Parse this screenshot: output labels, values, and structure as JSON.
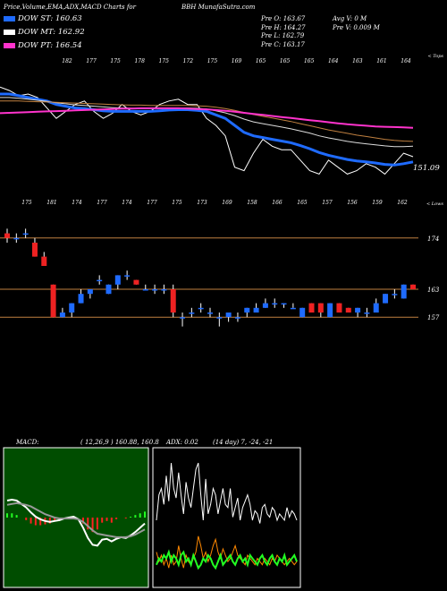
{
  "header": {
    "title": "Price,Volume,EMA,ADX,MACD Charts for",
    "symbol": "BBH",
    "site": "MunafaSutra.com"
  },
  "legend": [
    {
      "label": "DOW ST: 160.63",
      "color": "#1f6bff"
    },
    {
      "label": "DOW MT: 162.92",
      "color": "#ffffff"
    },
    {
      "label": "DOW PT: 166.54",
      "color": "#ff33cc"
    }
  ],
  "ohlc": {
    "open": "Pre O: 163.67",
    "high": "Pre H: 164.27",
    "low": "Pre L: 162.79",
    "close": "Pre C: 163.17",
    "avg_vol": "Avg V: 0 M",
    "pre_vol": "Pre V: 0.009 M"
  },
  "chart_data": [
    {
      "type": "line",
      "name": "ema-panel",
      "corner_label": "< Tops",
      "top_labels": [
        "182",
        "177",
        "175",
        "178",
        "175",
        "172",
        "175",
        "169",
        "165",
        "165",
        "165",
        "164",
        "163",
        "161",
        "164"
      ],
      "bottom_labels": [
        "175",
        "181",
        "174",
        "177",
        "174",
        "177",
        "175",
        "173",
        "169",
        "158",
        "166",
        "165",
        "157",
        "156",
        "159",
        "162"
      ],
      "price_label": "151.09",
      "series": [
        {
          "key": "price",
          "color": "#ffffff",
          "values": [
            177,
            176,
            174.5,
            175,
            174,
            171,
            168,
            170,
            172,
            173,
            170,
            168,
            169.5,
            172,
            170,
            169,
            170,
            172,
            173,
            173.5,
            172,
            172,
            168,
            166,
            163,
            154,
            153,
            158,
            162,
            160,
            159,
            159,
            156,
            153,
            152,
            156,
            154,
            152,
            153,
            155,
            154,
            152,
            155,
            158,
            157
          ]
        },
        {
          "key": "ema_blue",
          "color": "#1f6bff",
          "values": [
            175,
            175,
            174.5,
            174,
            173.5,
            173,
            172,
            171.5,
            171,
            170.8,
            170.5,
            170.2,
            170,
            170,
            170,
            170,
            170,
            170.2,
            170.4,
            170.5,
            170.5,
            170.3,
            170,
            169,
            168,
            166,
            164,
            163,
            162.5,
            162,
            161.5,
            161,
            160.2,
            159.3,
            158.2,
            157.4,
            156.8,
            156.2,
            155.8,
            155.5,
            155.2,
            154.8,
            154.6,
            155,
            155.5
          ]
        },
        {
          "key": "ema_white",
          "color": "#dddddd",
          "values": [
            174,
            174,
            173.8,
            173.5,
            173.2,
            172.9,
            172.5,
            172.2,
            171.9,
            171.7,
            171.5,
            171.3,
            171.1,
            171,
            170.9,
            170.8,
            170.8,
            170.8,
            170.9,
            171,
            171,
            170.9,
            170.7,
            170.2,
            169.6,
            168.8,
            167.8,
            167,
            166.5,
            166,
            165.5,
            165,
            164.4,
            163.8,
            163,
            162.4,
            161.9,
            161.4,
            161,
            160.7,
            160.4,
            160.1,
            159.9,
            159.9,
            160
          ]
        },
        {
          "key": "ema_orange",
          "color": "#c08040",
          "values": [
            173,
            173,
            173,
            172.9,
            172.8,
            172.7,
            172.6,
            172.5,
            172.4,
            172.3,
            172.2,
            172.1,
            172,
            171.9,
            171.8,
            171.8,
            171.7,
            171.7,
            171.7,
            171.7,
            171.7,
            171.6,
            171.5,
            171.2,
            170.8,
            170.3,
            169.7,
            169.1,
            168.6,
            168.1,
            167.6,
            167.1,
            166.5,
            165.9,
            165.3,
            164.7,
            164.2,
            163.7,
            163.2,
            162.8,
            162.4,
            162,
            161.7,
            161.5,
            161.4
          ]
        },
        {
          "key": "ema_pink",
          "color": "#ff33cc",
          "values": [
            169.5,
            169.6,
            169.7,
            169.8,
            169.9,
            170,
            170.1,
            170.2,
            170.3,
            170.4,
            170.5,
            170.6,
            170.7,
            170.8,
            170.8,
            170.9,
            170.9,
            170.9,
            170.9,
            170.9,
            170.8,
            170.7,
            170.6,
            170.4,
            170.2,
            169.9,
            169.6,
            169.3,
            169,
            168.7,
            168.4,
            168.1,
            167.8,
            167.5,
            167.2,
            166.9,
            166.6,
            166.3,
            166.1,
            165.9,
            165.7,
            165.6,
            165.5,
            165.4,
            165.3
          ]
        }
      ],
      "ylim": [
        148,
        184
      ]
    },
    {
      "type": "candlestick",
      "name": "price-panel",
      "corner_label": "< Lows",
      "x_labels": [
        "175",
        "181",
        "174",
        "177",
        "174",
        "177",
        "175",
        "173",
        "169",
        "158",
        "166",
        "165",
        "157",
        "156",
        "159",
        "162"
      ],
      "levels": [
        {
          "value": 174,
          "label": "174"
        },
        {
          "value": 163,
          "label": "163"
        },
        {
          "value": 157,
          "label": "157"
        }
      ],
      "candles": [
        {
          "o": 175,
          "h": 176,
          "l": 173,
          "c": 174
        },
        {
          "o": 174,
          "h": 175,
          "l": 173,
          "c": 174
        },
        {
          "o": 175,
          "h": 176,
          "l": 174,
          "c": 175
        },
        {
          "o": 173,
          "h": 174,
          "l": 170,
          "c": 170
        },
        {
          "o": 170,
          "h": 171,
          "l": 168,
          "c": 168
        },
        {
          "o": 164,
          "h": 164,
          "l": 157,
          "c": 157
        },
        {
          "o": 157,
          "h": 159,
          "l": 157,
          "c": 158
        },
        {
          "o": 158,
          "h": 160,
          "l": 157,
          "c": 160
        },
        {
          "o": 160,
          "h": 163,
          "l": 160,
          "c": 162
        },
        {
          "o": 162,
          "h": 163,
          "l": 161,
          "c": 163
        },
        {
          "o": 165,
          "h": 166,
          "l": 164,
          "c": 165
        },
        {
          "o": 162,
          "h": 164,
          "l": 162,
          "c": 164
        },
        {
          "o": 164,
          "h": 166,
          "l": 163,
          "c": 166
        },
        {
          "o": 166,
          "h": 167,
          "l": 165,
          "c": 166
        },
        {
          "o": 165,
          "h": 165,
          "l": 164,
          "c": 164
        },
        {
          "o": 163,
          "h": 164,
          "l": 163,
          "c": 163
        },
        {
          "o": 163,
          "h": 164,
          "l": 162,
          "c": 163
        },
        {
          "o": 163,
          "h": 164,
          "l": 162,
          "c": 163
        },
        {
          "o": 163,
          "h": 164,
          "l": 157,
          "c": 158
        },
        {
          "o": 157,
          "h": 158,
          "l": 155,
          "c": 157
        },
        {
          "o": 158,
          "h": 159,
          "l": 157,
          "c": 158
        },
        {
          "o": 159,
          "h": 160,
          "l": 158,
          "c": 159
        },
        {
          "o": 158,
          "h": 159,
          "l": 157,
          "c": 158
        },
        {
          "o": 157,
          "h": 158,
          "l": 155,
          "c": 157
        },
        {
          "o": 157,
          "h": 158,
          "l": 156,
          "c": 158
        },
        {
          "o": 157,
          "h": 158,
          "l": 156,
          "c": 157
        },
        {
          "o": 158,
          "h": 159,
          "l": 157,
          "c": 159
        },
        {
          "o": 158,
          "h": 160,
          "l": 158,
          "c": 159
        },
        {
          "o": 159,
          "h": 161,
          "l": 159,
          "c": 160
        },
        {
          "o": 160,
          "h": 161,
          "l": 159,
          "c": 160
        },
        {
          "o": 160,
          "h": 160,
          "l": 159,
          "c": 160
        },
        {
          "o": 159,
          "h": 160,
          "l": 159,
          "c": 159
        },
        {
          "o": 157,
          "h": 159,
          "l": 157,
          "c": 159
        },
        {
          "o": 160,
          "h": 160,
          "l": 158,
          "c": 158
        },
        {
          "o": 160,
          "h": 160,
          "l": 157,
          "c": 158
        },
        {
          "o": 157,
          "h": 160,
          "l": 157,
          "c": 160
        },
        {
          "o": 160,
          "h": 160,
          "l": 158,
          "c": 158
        },
        {
          "o": 159,
          "h": 159,
          "l": 158,
          "c": 158
        },
        {
          "o": 158,
          "h": 159,
          "l": 157,
          "c": 159
        },
        {
          "o": 158,
          "h": 159,
          "l": 157,
          "c": 158
        },
        {
          "o": 158,
          "h": 161,
          "l": 158,
          "c": 160
        },
        {
          "o": 160,
          "h": 162,
          "l": 160,
          "c": 162
        },
        {
          "o": 162,
          "h": 163,
          "l": 161,
          "c": 162
        },
        {
          "o": 161,
          "h": 164,
          "l": 161,
          "c": 164
        },
        {
          "o": 164,
          "h": 164,
          "l": 163,
          "c": 163
        }
      ],
      "ylim": [
        153,
        178
      ]
    },
    {
      "type": "line",
      "name": "macd-panel",
      "label": "MACD:",
      "params": "( 12,26,9 ) 160.88, 160.8",
      "series": [
        {
          "key": "macd",
          "color": "#ffffff",
          "values": [
            2.0,
            2.1,
            2.0,
            1.6,
            1.2,
            0.6,
            0.1,
            -0.2,
            -0.4,
            -0.5,
            -0.4,
            -0.3,
            -0.1,
            0.0,
            0.1,
            -0.2,
            -1.2,
            -2.4,
            -3.2,
            -3.3,
            -2.6,
            -2.5,
            -2.8,
            -2.5,
            -2.3,
            -2.4,
            -2.1,
            -1.7,
            -1.2,
            -0.7
          ]
        },
        {
          "key": "signal",
          "color": "#999999",
          "values": [
            1.5,
            1.6,
            1.7,
            1.6,
            1.5,
            1.3,
            1.0,
            0.7,
            0.4,
            0.2,
            0.0,
            -0.1,
            -0.1,
            -0.1,
            -0.1,
            -0.2,
            -0.5,
            -1.0,
            -1.5,
            -1.9,
            -2.0,
            -2.1,
            -2.2,
            -2.3,
            -2.3,
            -2.3,
            -2.2,
            -2.0,
            -1.7,
            -1.4
          ]
        },
        {
          "key": "hist",
          "color": "#ff2222",
          "values": [
            0.5,
            0.5,
            0.3,
            0.0,
            -0.3,
            -0.7,
            -0.9,
            -0.9,
            -0.8,
            -0.7,
            -0.4,
            -0.2,
            0.0,
            0.1,
            0.2,
            0.0,
            -0.7,
            -1.4,
            -1.7,
            -1.4,
            -0.6,
            -0.4,
            -0.6,
            -0.2,
            0.0,
            -0.1,
            0.1,
            0.3,
            0.5,
            0.7
          ]
        }
      ],
      "ylim": [
        -4,
        4
      ]
    },
    {
      "type": "line",
      "name": "adx-panel",
      "label": "ADX: 0.02",
      "params": "(14 day) 7, -24, -21",
      "series": [
        {
          "key": "adx",
          "color": "#ffffff",
          "values": [
            20,
            28,
            30,
            25,
            34,
            26,
            38,
            30,
            27,
            35,
            28,
            22,
            32,
            27,
            24,
            30,
            36,
            38,
            28,
            20,
            33,
            22,
            25,
            30,
            28,
            22,
            26,
            30,
            25,
            24,
            30,
            21,
            24,
            27,
            20,
            24,
            26,
            28,
            25,
            20,
            23,
            22,
            19,
            24,
            25,
            22,
            21,
            24,
            23,
            20,
            22,
            21,
            20,
            24,
            21,
            23,
            22,
            20
          ]
        },
        {
          "key": "plus_di",
          "color": "#ff8800",
          "values": [
            10,
            7,
            9,
            6,
            8,
            5,
            9,
            6,
            7,
            12,
            8,
            5,
            9,
            7,
            6,
            8,
            10,
            15,
            12,
            8,
            10,
            7,
            9,
            12,
            14,
            10,
            8,
            11,
            9,
            7,
            8,
            10,
            12,
            9,
            8,
            7,
            6,
            9,
            8,
            7,
            6,
            8,
            7,
            6,
            8,
            7,
            6,
            8,
            7,
            9,
            8,
            7,
            6,
            7,
            8,
            7,
            6,
            7
          ]
        },
        {
          "key": "minus_di",
          "color": "#22ff22",
          "values": [
            6,
            8,
            7,
            9,
            8,
            10,
            7,
            9,
            8,
            6,
            9,
            10,
            7,
            8,
            6,
            9,
            7,
            5,
            6,
            8,
            7,
            9,
            8,
            6,
            5,
            7,
            9,
            6,
            7,
            8,
            9,
            7,
            6,
            8,
            9,
            7,
            8,
            6,
            9,
            8,
            7,
            6,
            8,
            9,
            7,
            6,
            8,
            9,
            7,
            6,
            8,
            7,
            9,
            6,
            7,
            8,
            9,
            7
          ]
        }
      ],
      "ylim": [
        0,
        40
      ]
    }
  ]
}
